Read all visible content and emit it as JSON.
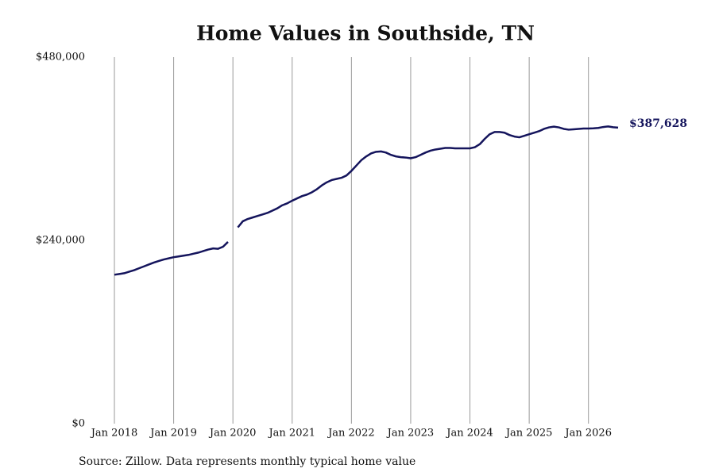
{
  "chart_data": {
    "type": "line",
    "title": "Home Values in Southside, TN",
    "source": "Source: Zillow. Data represents monthly typical home value",
    "x": [
      "2018-01",
      "2018-02",
      "2018-03",
      "2018-04",
      "2018-05",
      "2018-06",
      "2018-07",
      "2018-08",
      "2018-09",
      "2018-10",
      "2018-11",
      "2018-12",
      "2019-01",
      "2019-02",
      "2019-03",
      "2019-04",
      "2019-05",
      "2019-06",
      "2019-07",
      "2019-08",
      "2019-09",
      "2019-10",
      "2019-11",
      "2019-12",
      "2020-01",
      "2020-02",
      "2020-03",
      "2020-04",
      "2020-05",
      "2020-06",
      "2020-07",
      "2020-08",
      "2020-09",
      "2020-10",
      "2020-11",
      "2020-12",
      "2021-01",
      "2021-02",
      "2021-03",
      "2021-04",
      "2021-05",
      "2021-06",
      "2021-07",
      "2021-08",
      "2021-09",
      "2021-10",
      "2021-11",
      "2021-12",
      "2022-01",
      "2022-02",
      "2022-03",
      "2022-04",
      "2022-05",
      "2022-06",
      "2022-07",
      "2022-08",
      "2022-09",
      "2022-10",
      "2022-11",
      "2022-12",
      "2023-01",
      "2023-02",
      "2023-03",
      "2023-04",
      "2023-05",
      "2023-06",
      "2023-07",
      "2023-08",
      "2023-09",
      "2023-10",
      "2023-11",
      "2023-12",
      "2024-01",
      "2024-02",
      "2024-03",
      "2024-04",
      "2024-05",
      "2024-06",
      "2024-07",
      "2024-08",
      "2024-09",
      "2024-10",
      "2024-11",
      "2024-12",
      "2025-01",
      "2025-02",
      "2025-03",
      "2025-04",
      "2025-05",
      "2025-06",
      "2025-07",
      "2025-08",
      "2025-09",
      "2025-10",
      "2025-11",
      "2025-12",
      "2026-01",
      "2026-02",
      "2026-03",
      "2026-04",
      "2026-05",
      "2026-06",
      "2026-07"
    ],
    "series": [
      {
        "name": "Southside, TN",
        "color": "#14145c",
        "end_label": "$387,628",
        "values": [
          195000,
          196000,
          197000,
          199000,
          201000,
          203500,
          206000,
          208500,
          211000,
          213000,
          215000,
          216500,
          218000,
          219000,
          220000,
          221000,
          222500,
          224000,
          226000,
          228000,
          229500,
          229000,
          231700,
          238000,
          null,
          257000,
          265000,
          268000,
          270000,
          272000,
          274000,
          276000,
          279000,
          282000,
          286000,
          288500,
          292000,
          295000,
          298000,
          300000,
          303000,
          307000,
          312000,
          316000,
          319000,
          320500,
          322000,
          325000,
          331000,
          338000,
          345000,
          350000,
          354000,
          356000,
          356500,
          355000,
          352000,
          350000,
          349000,
          348500,
          347500,
          349000,
          352000,
          355000,
          357500,
          359000,
          360000,
          361000,
          361000,
          360500,
          360500,
          360500,
          360500,
          362000,
          366000,
          373000,
          379000,
          382000,
          382000,
          381000,
          378000,
          376000,
          375000,
          377000,
          379000,
          381000,
          383000,
          386000,
          388000,
          389000,
          388000,
          386000,
          385000,
          385500,
          386000,
          386500,
          386500,
          386700,
          387300,
          388500,
          389200,
          388200,
          387628
        ]
      }
    ],
    "xlim": [
      "2018-01",
      "2026-07"
    ],
    "xticks": [
      {
        "value": "2018-01",
        "label": "Jan 2018"
      },
      {
        "value": "2019-01",
        "label": "Jan 2019"
      },
      {
        "value": "2020-01",
        "label": "Jan 2020"
      },
      {
        "value": "2021-01",
        "label": "Jan 2021"
      },
      {
        "value": "2022-01",
        "label": "Jan 2022"
      },
      {
        "value": "2023-01",
        "label": "Jan 2023"
      },
      {
        "value": "2024-01",
        "label": "Jan 2024"
      },
      {
        "value": "2025-01",
        "label": "Jan 2025"
      },
      {
        "value": "2026-01",
        "label": "Jan 2026"
      }
    ],
    "ylim": [
      0,
      480000
    ],
    "yticks": [
      {
        "value": 0,
        "label": "$0"
      },
      {
        "value": 240000,
        "label": "$240,000"
      },
      {
        "value": 480000,
        "label": "$480,000"
      }
    ],
    "grid": "x"
  }
}
